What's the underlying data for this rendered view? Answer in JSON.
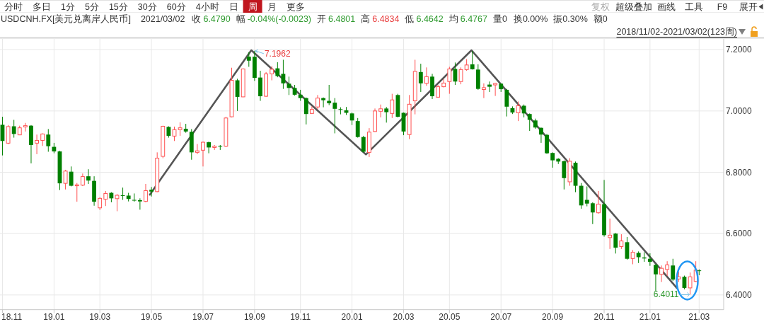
{
  "chart_data": {
    "type": "candlestick",
    "title": "USDCNH.FX[美元兑离岸人民币]",
    "x": [
      "2018-11-02",
      "2018-11-09",
      "2018-11-16",
      "2018-11-23",
      "2018-11-30",
      "2018-12-07",
      "2018-12-14",
      "2018-12-21",
      "2018-12-28",
      "2019-01-04",
      "2019-01-11",
      "2019-01-18",
      "2019-01-25",
      "2019-02-01",
      "2019-02-08",
      "2019-02-15",
      "2019-02-22",
      "2019-03-01",
      "2019-03-08",
      "2019-03-15",
      "2019-03-22",
      "2019-03-29",
      "2019-04-05",
      "2019-04-12",
      "2019-04-19",
      "2019-04-26",
      "2019-05-03",
      "2019-05-10",
      "2019-05-17",
      "2019-05-24",
      "2019-05-31",
      "2019-06-07",
      "2019-06-14",
      "2019-06-21",
      "2019-06-28",
      "2019-07-05",
      "2019-07-12",
      "2019-07-19",
      "2019-07-26",
      "2019-08-02",
      "2019-08-09",
      "2019-08-16",
      "2019-08-23",
      "2019-08-30",
      "2019-09-06",
      "2019-09-13",
      "2019-09-20",
      "2019-09-27",
      "2019-10-04",
      "2019-10-11",
      "2019-10-18",
      "2019-10-25",
      "2019-11-01",
      "2019-11-08",
      "2019-11-15",
      "2019-11-22",
      "2019-11-29",
      "2019-12-06",
      "2019-12-13",
      "2019-12-20",
      "2019-12-27",
      "2020-01-03",
      "2020-01-10",
      "2020-01-17",
      "2020-01-24",
      "2020-01-31",
      "2020-02-07",
      "2020-02-14",
      "2020-02-21",
      "2020-02-28",
      "2020-03-06",
      "2020-03-13",
      "2020-03-20",
      "2020-03-27",
      "2020-04-03",
      "2020-04-10",
      "2020-04-17",
      "2020-04-24",
      "2020-05-01",
      "2020-05-08",
      "2020-05-15",
      "2020-05-22",
      "2020-05-29",
      "2020-06-05",
      "2020-06-12",
      "2020-06-19",
      "2020-06-26",
      "2020-07-03",
      "2020-07-10",
      "2020-07-17",
      "2020-07-24",
      "2020-07-31",
      "2020-08-07",
      "2020-08-14",
      "2020-08-21",
      "2020-08-28",
      "2020-09-04",
      "2020-09-11",
      "2020-09-18",
      "2020-09-25",
      "2020-10-02",
      "2020-10-09",
      "2020-10-16",
      "2020-10-23",
      "2020-10-30",
      "2020-11-06",
      "2020-11-13",
      "2020-11-20",
      "2020-11-27",
      "2020-12-04",
      "2020-12-11",
      "2020-12-18",
      "2020-12-25",
      "2021-01-01",
      "2021-01-08",
      "2021-01-15",
      "2021-01-22",
      "2021-01-29",
      "2021-02-05",
      "2021-02-12",
      "2021-02-19",
      "2021-02-26",
      "2021-03-02"
    ],
    "ohlc": [
      [
        6.955,
        6.981,
        6.855,
        6.902
      ],
      [
        6.895,
        6.954,
        6.892,
        6.949
      ],
      [
        6.95,
        6.971,
        6.913,
        6.925
      ],
      [
        6.922,
        6.952,
        6.921,
        6.945
      ],
      [
        6.948,
        6.961,
        6.933,
        6.952
      ],
      [
        6.952,
        6.954,
        6.829,
        6.889
      ],
      [
        6.895,
        6.923,
        6.859,
        6.904
      ],
      [
        6.904,
        6.927,
        6.886,
        6.925
      ],
      [
        6.923,
        6.941,
        6.867,
        6.885
      ],
      [
        6.883,
        6.896,
        6.862,
        6.868
      ],
      [
        6.868,
        6.87,
        6.742,
        6.764
      ],
      [
        6.764,
        6.808,
        6.744,
        6.804
      ],
      [
        6.802,
        6.819,
        6.754,
        6.756
      ],
      [
        6.756,
        6.765,
        6.704,
        6.759
      ],
      [
        6.758,
        6.796,
        6.755,
        6.786
      ],
      [
        6.787,
        6.81,
        6.762,
        6.773
      ],
      [
        6.772,
        6.787,
        6.691,
        6.704
      ],
      [
        6.684,
        6.719,
        6.677,
        6.715
      ],
      [
        6.712,
        6.739,
        6.69,
        6.731
      ],
      [
        6.733,
        6.735,
        6.702,
        6.715
      ],
      [
        6.714,
        6.729,
        6.673,
        6.725
      ],
      [
        6.725,
        6.75,
        6.71,
        6.724
      ],
      [
        6.724,
        6.733,
        6.705,
        6.713
      ],
      [
        6.71,
        6.731,
        6.704,
        6.709
      ],
      [
        6.709,
        6.715,
        6.678,
        6.705
      ],
      [
        6.705,
        6.762,
        6.702,
        6.74
      ],
      [
        6.743,
        6.752,
        6.721,
        6.737
      ],
      [
        6.737,
        6.865,
        6.735,
        6.846
      ],
      [
        6.852,
        6.952,
        6.846,
        6.95
      ],
      [
        6.948,
        6.95,
        6.913,
        6.919
      ],
      [
        6.918,
        6.949,
        6.902,
        6.939
      ],
      [
        6.939,
        6.963,
        6.919,
        6.945
      ],
      [
        6.942,
        6.958,
        6.929,
        6.933
      ],
      [
        6.932,
        6.941,
        6.841,
        6.865
      ],
      [
        6.865,
        6.892,
        6.859,
        6.87
      ],
      [
        6.872,
        6.9,
        6.819,
        6.898
      ],
      [
        6.898,
        6.9,
        6.862,
        6.881
      ],
      [
        6.881,
        6.889,
        6.873,
        6.885
      ],
      [
        6.886,
        6.889,
        6.873,
        6.885
      ],
      [
        6.885,
        6.981,
        6.882,
        6.977
      ],
      [
        6.981,
        7.141,
        6.979,
        7.1
      ],
      [
        7.1,
        7.105,
        7.0,
        7.046
      ],
      [
        7.046,
        7.139,
        7.045,
        7.137
      ],
      [
        7.177,
        7.192,
        7.144,
        7.164
      ],
      [
        7.177,
        7.1962,
        7.098,
        7.108
      ],
      [
        7.109,
        7.131,
        7.033,
        7.048
      ],
      [
        7.048,
        7.127,
        7.046,
        7.121
      ],
      [
        7.121,
        7.146,
        7.1,
        7.136
      ],
      [
        7.139,
        7.159,
        7.11,
        7.114
      ],
      [
        7.121,
        7.167,
        7.072,
        7.09
      ],
      [
        7.089,
        7.112,
        7.052,
        7.075
      ],
      [
        7.075,
        7.085,
        7.05,
        7.053
      ],
      [
        7.053,
        7.069,
        7.033,
        7.042
      ],
      [
        7.042,
        7.044,
        6.956,
        6.99
      ],
      [
        6.992,
        7.015,
        6.99,
        7.005
      ],
      [
        7.013,
        7.052,
        7.005,
        7.042
      ],
      [
        7.042,
        7.044,
        7.012,
        7.035
      ],
      [
        7.033,
        7.085,
        7.019,
        7.025
      ],
      [
        7.027,
        7.042,
        6.927,
        7.007
      ],
      [
        7.006,
        7.012,
        6.989,
        7.004
      ],
      [
        7.002,
        7.013,
        6.987,
        6.994
      ],
      [
        6.992,
        6.995,
        6.954,
        6.969
      ],
      [
        6.967,
        6.977,
        6.913,
        6.915
      ],
      [
        6.915,
        6.919,
        6.864,
        6.867
      ],
      [
        6.865,
        6.944,
        6.85,
        6.931
      ],
      [
        6.933,
        7.008,
        6.931,
        7.0
      ],
      [
        6.999,
        7.021,
        6.979,
        7.007
      ],
      [
        7.008,
        7.013,
        6.962,
        6.996
      ],
      [
        6.992,
        7.056,
        6.977,
        7.036
      ],
      [
        7.052,
        7.056,
        6.979,
        6.981
      ],
      [
        6.994,
        6.995,
        6.921,
        6.933
      ],
      [
        6.923,
        7.052,
        6.908,
        7.022
      ],
      [
        7.033,
        7.167,
        6.989,
        7.129
      ],
      [
        7.127,
        7.154,
        7.062,
        7.09
      ],
      [
        7.09,
        7.142,
        7.082,
        7.112
      ],
      [
        7.112,
        7.121,
        7.039,
        7.048
      ],
      [
        7.045,
        7.085,
        7.044,
        7.079
      ],
      [
        7.079,
        7.104,
        7.077,
        7.091
      ],
      [
        7.096,
        7.144,
        7.056,
        7.137
      ],
      [
        7.137,
        7.158,
        7.085,
        7.096
      ],
      [
        7.096,
        7.142,
        7.087,
        7.135
      ],
      [
        7.135,
        7.169,
        7.131,
        7.15
      ],
      [
        7.152,
        7.196,
        7.135,
        7.136
      ],
      [
        7.135,
        7.152,
        7.069,
        7.072
      ],
      [
        7.07,
        7.09,
        7.042,
        7.076
      ],
      [
        7.086,
        7.096,
        7.062,
        7.079
      ],
      [
        7.085,
        7.092,
        7.049,
        7.09
      ],
      [
        7.089,
        7.09,
        7.062,
        7.071
      ],
      [
        7.069,
        7.072,
        6.982,
        7.014
      ],
      [
        7.009,
        7.015,
        6.99,
        6.995
      ],
      [
        6.994,
        7.031,
        6.967,
        7.017
      ],
      [
        7.017,
        7.021,
        6.979,
        6.992
      ],
      [
        6.99,
        6.992,
        6.935,
        6.971
      ],
      [
        6.969,
        6.975,
        6.942,
        6.946
      ],
      [
        6.945,
        6.946,
        6.896,
        6.923
      ],
      [
        6.922,
        6.925,
        6.86,
        6.862
      ],
      [
        6.863,
        6.865,
        6.815,
        6.839
      ],
      [
        6.844,
        6.846,
        6.827,
        6.835
      ],
      [
        6.836,
        6.839,
        6.744,
        6.781
      ],
      [
        6.769,
        6.846,
        6.756,
        6.836
      ],
      [
        6.831,
        6.835,
        6.735,
        6.756
      ],
      [
        6.756,
        6.765,
        6.681,
        6.692
      ],
      [
        6.71,
        6.754,
        6.689,
        6.698
      ],
      [
        6.699,
        6.702,
        6.631,
        6.669
      ],
      [
        6.668,
        6.739,
        6.665,
        6.696
      ],
      [
        6.696,
        6.775,
        6.59,
        6.595
      ],
      [
        6.587,
        6.649,
        6.55,
        6.595
      ],
      [
        6.6,
        6.602,
        6.535,
        6.554
      ],
      [
        6.558,
        6.598,
        6.55,
        6.576
      ],
      [
        6.572,
        6.589,
        6.515,
        6.518
      ],
      [
        6.519,
        6.546,
        6.5,
        6.539
      ],
      [
        6.537,
        6.542,
        6.504,
        6.523
      ],
      [
        6.522,
        6.539,
        6.508,
        6.519
      ],
      [
        6.518,
        6.536,
        6.495,
        6.508
      ],
      [
        6.498,
        6.5,
        6.413,
        6.467
      ],
      [
        6.467,
        6.496,
        6.442,
        6.487
      ],
      [
        6.483,
        6.51,
        6.462,
        6.498
      ],
      [
        6.496,
        6.518,
        6.446,
        6.45
      ],
      [
        6.452,
        6.475,
        6.442,
        6.459
      ],
      [
        6.459,
        6.463,
        6.418,
        6.423
      ],
      [
        6.423,
        6.473,
        6.4011,
        6.459
      ],
      [
        6.444,
        6.51,
        6.442,
        6.481
      ],
      [
        6.4801,
        6.4834,
        6.4642,
        6.479
      ]
    ],
    "colors": [
      "#008000",
      "#ff5050",
      "#008000",
      "#ff5050",
      "#ff5050",
      "#008000",
      "#ff5050",
      "#ff5050",
      "#008000",
      "#008000",
      "#008000",
      "#ff5050",
      "#008000",
      "#ff5050",
      "#ff5050",
      "#008000",
      "#008000",
      "#ff5050",
      "#ff5050",
      "#008000",
      "#ff5050",
      "#008000",
      "#008000",
      "#008000",
      "#008000",
      "#ff5050",
      "#008000",
      "#ff5050",
      "#ff5050",
      "#008000",
      "#ff5050",
      "#ff5050",
      "#008000",
      "#008000",
      "#ff5050",
      "#ff5050",
      "#008000",
      "#ff5050",
      "#008000",
      "#ff5050",
      "#ff5050",
      "#008000",
      "#ff5050",
      "#008000",
      "#008000",
      "#008000",
      "#ff5050",
      "#ff5050",
      "#008000",
      "#008000",
      "#008000",
      "#008000",
      "#008000",
      "#008000",
      "#ff5050",
      "#ff5050",
      "#008000",
      "#008000",
      "#008000",
      "#008000",
      "#008000",
      "#008000",
      "#008000",
      "#008000",
      "#ff5050",
      "#ff5050",
      "#ff5050",
      "#008000",
      "#ff5050",
      "#008000",
      "#008000",
      "#ff5050",
      "#ff5050",
      "#008000",
      "#ff5050",
      "#008000",
      "#ff5050",
      "#ff5050",
      "#ff5050",
      "#008000",
      "#ff5050",
      "#ff5050",
      "#008000",
      "#008000",
      "#ff5050",
      "#008000",
      "#ff5050",
      "#008000",
      "#008000",
      "#008000",
      "#ff5050",
      "#008000",
      "#008000",
      "#008000",
      "#008000",
      "#008000",
      "#008000",
      "#008000",
      "#008000",
      "#ff5050",
      "#008000",
      "#008000",
      "#008000",
      "#008000",
      "#ff5050",
      "#008000",
      "#ff5050",
      "#008000",
      "#ff5050",
      "#008000",
      "#ff5050",
      "#008000",
      "#008000",
      "#008000",
      "#008000",
      "#ff5050",
      "#ff5050",
      "#008000",
      "#ff5050",
      "#008000",
      "#ff5050",
      "#ff5050",
      "#008000"
    ],
    "series": [
      {
        "type": "line",
        "color": "#555555",
        "x": [
          "2019-05-01",
          "2019-09-02",
          "2020-01-20",
          "2020-05-28",
          "2021-02-03"
        ],
        "values": [
          6.727,
          7.198,
          6.858,
          7.198,
          6.422
        ]
      }
    ],
    "xlim": [
      "2018-10-30",
      "2021-04-01"
    ],
    "ylim": [
      6.352,
      7.235
    ],
    "xticks": [
      {
        "value": "2018-11-02",
        "label": "18.11"
      },
      {
        "value": "2019-01-04",
        "label": "19.01"
      },
      {
        "value": "2019-03-01",
        "label": "19.03"
      },
      {
        "value": "2019-05-03",
        "label": "19.05"
      },
      {
        "value": "2019-07-05",
        "label": "19.07"
      },
      {
        "value": "2019-09-06",
        "label": "19.09"
      },
      {
        "value": "2019-11-01",
        "label": "19.11"
      },
      {
        "value": "2020-01-03",
        "label": "20.01"
      },
      {
        "value": "2020-03-06",
        "label": "20.03"
      },
      {
        "value": "2020-05-01",
        "label": "20.05"
      },
      {
        "value": "2020-07-03",
        "label": "20.07"
      },
      {
        "value": "2020-09-04",
        "label": "20.09"
      },
      {
        "value": "2020-11-06",
        "label": "20.11"
      },
      {
        "value": "2021-01-01",
        "label": "21.01"
      },
      {
        "value": "2021-03-02",
        "label": "21.03"
      }
    ],
    "yticks": [
      {
        "value": 6.4,
        "label": "6.4000"
      },
      {
        "value": 6.6,
        "label": "6.6000"
      },
      {
        "value": 6.8,
        "label": "6.8000"
      },
      {
        "value": 7.0,
        "label": "7.0000"
      },
      {
        "value": 7.2,
        "label": "7.2000"
      }
    ],
    "grid": true,
    "annotations": [
      {
        "text": "7.1962",
        "x": "2019-09-06",
        "y": 7.1962
      },
      {
        "text": "6.4011",
        "x": "2021-02-19",
        "y": 6.4011
      },
      "分时",
      "多日",
      "1分",
      "5分",
      "15分",
      "30分",
      "60分",
      "4小时",
      "日",
      "周",
      "月",
      "更多",
      "复权",
      "超级叠加",
      "画线",
      "工具",
      "F9",
      "展开",
      "2021/03/02",
      "收",
      "6.4790",
      "幅",
      "-0.04%(-0.0023)",
      "开",
      "6.4801",
      "高",
      "6.4834",
      "低",
      "6.4642",
      "均",
      "6.4767",
      "量0",
      "换0.00%",
      "振0.30%",
      "额0",
      "2018/11/02-2021/03/02(123周)"
    ]
  }
}
